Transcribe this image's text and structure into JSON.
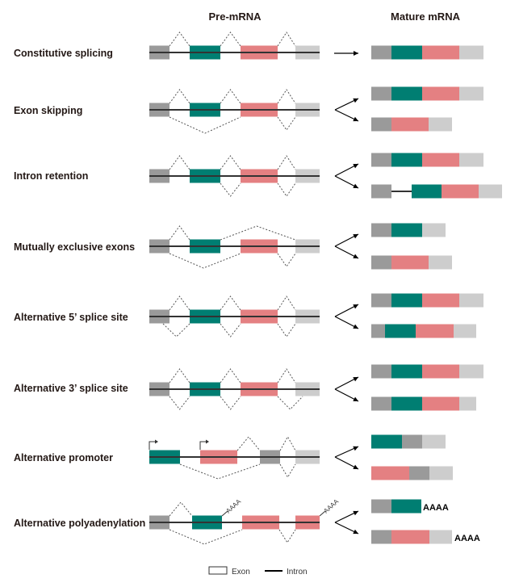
{
  "headers": {
    "pre": "Pre-mRNA",
    "mature": "Mature mRNA"
  },
  "rows": [
    {
      "label": "Constitutive splicing"
    },
    {
      "label": "Exon skipping"
    },
    {
      "label": "Intron retention"
    },
    {
      "label": "Mutually exclusive exons"
    },
    {
      "label": "Alternative 5’ splice site"
    },
    {
      "label": "Alternative 3’ splice site"
    },
    {
      "label": "Alternative promoter"
    },
    {
      "label": "Alternative polyadenylation"
    }
  ],
  "polya": {
    "tail": "AAAA"
  },
  "legend": {
    "exon": "Exon",
    "intron": "Intron"
  },
  "colors": {
    "dark_gray": "#9a9a9a",
    "teal": "#007e72",
    "pink": "#e48082",
    "light_gray": "#cdcdcd",
    "peach": "#fcc9a6",
    "aqua": "#66c7bd",
    "line": "#333333"
  }
}
